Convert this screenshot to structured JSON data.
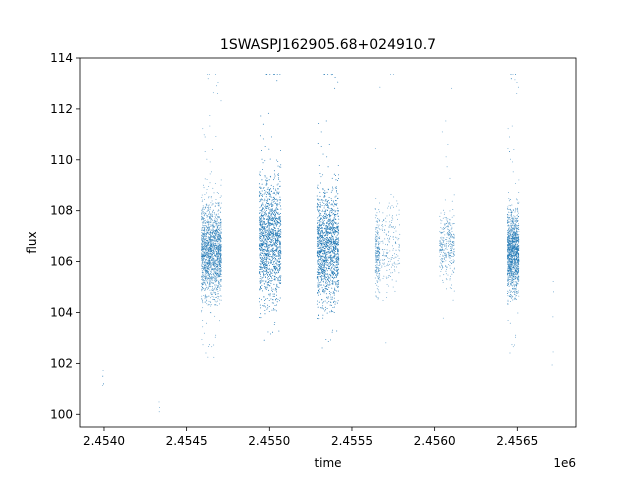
{
  "chart_data": {
    "type": "scatter",
    "title": "1SWASPJ162905.68+024910.7",
    "xlabel": "time",
    "ylabel": "flux",
    "x_offset_label": "1e6",
    "xlim": [
      2453855,
      2456855
    ],
    "ylim": [
      99.5,
      114
    ],
    "x_ticks": [
      2454000,
      2454500,
      2455000,
      2455500,
      2456000,
      2456500
    ],
    "x_tick_labels": [
      "2.4540",
      "2.4545",
      "2.4550",
      "2.4555",
      "2.4560",
      "2.4565"
    ],
    "y_ticks": [
      100,
      102,
      104,
      106,
      108,
      110,
      112,
      114
    ],
    "y_tick_labels": [
      "100",
      "102",
      "104",
      "106",
      "108",
      "110",
      "112",
      "114"
    ],
    "grid": false,
    "marker_color": "#1f77b4",
    "clusters": [
      {
        "x_range": [
          2453990,
          2454000
        ],
        "center": 100.8,
        "spread": 0.6,
        "n": 6
      },
      {
        "x_range": [
          2454330,
          2454340
        ],
        "center": 100.4,
        "spread": 0.2,
        "n": 3
      },
      {
        "x_range": [
          2454590,
          2454710
        ],
        "center": 106.4,
        "spread": 0.9,
        "n": 1800
      },
      {
        "x_range": [
          2454940,
          2455070
        ],
        "center": 106.9,
        "spread": 1.2,
        "n": 2600
      },
      {
        "x_range": [
          2455290,
          2455420
        ],
        "center": 106.6,
        "spread": 1.1,
        "n": 2600
      },
      {
        "x_range": [
          2455640,
          2455670
        ],
        "center": 106.4,
        "spread": 0.8,
        "n": 220
      },
      {
        "x_range": [
          2455680,
          2455790
        ],
        "center": 106.8,
        "spread": 0.9,
        "n": 180
      },
      {
        "x_range": [
          2456030,
          2456120
        ],
        "center": 106.6,
        "spread": 0.7,
        "n": 320
      },
      {
        "x_range": [
          2456440,
          2456510
        ],
        "center": 106.4,
        "spread": 0.8,
        "n": 1500
      },
      {
        "x_range": [
          2456710,
          2456720
        ],
        "center": 104.0,
        "spread": 1.5,
        "n": 5
      }
    ]
  }
}
